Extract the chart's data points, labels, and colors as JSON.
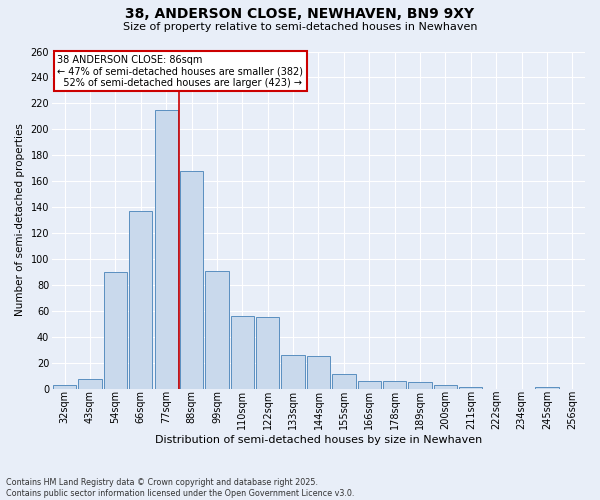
{
  "title": "38, ANDERSON CLOSE, NEWHAVEN, BN9 9XY",
  "subtitle": "Size of property relative to semi-detached houses in Newhaven",
  "xlabel": "Distribution of semi-detached houses by size in Newhaven",
  "ylabel": "Number of semi-detached properties",
  "categories": [
    "32sqm",
    "43sqm",
    "54sqm",
    "66sqm",
    "77sqm",
    "88sqm",
    "99sqm",
    "110sqm",
    "122sqm",
    "133sqm",
    "144sqm",
    "155sqm",
    "166sqm",
    "178sqm",
    "189sqm",
    "200sqm",
    "211sqm",
    "222sqm",
    "234sqm",
    "245sqm",
    "256sqm"
  ],
  "values": [
    3,
    7,
    90,
    137,
    215,
    168,
    91,
    56,
    55,
    26,
    25,
    11,
    6,
    6,
    5,
    3,
    1,
    0,
    0,
    1,
    0
  ],
  "bar_color": "#c9d9ec",
  "bar_edge_color": "#5a8fc0",
  "ref_line_color": "#cc0000",
  "annotation_box_color": "#ffffff",
  "annotation_box_edge": "#cc0000",
  "ref_line_label": "38 ANDERSON CLOSE: 86sqm",
  "smaller_pct": "47%",
  "smaller_count": 382,
  "larger_pct": "52%",
  "larger_count": 423,
  "background_color": "#e8eef8",
  "grid_color": "#ffffff",
  "footer": "Contains HM Land Registry data © Crown copyright and database right 2025.\nContains public sector information licensed under the Open Government Licence v3.0.",
  "ylim": [
    0,
    260
  ],
  "yticks": [
    0,
    20,
    40,
    60,
    80,
    100,
    120,
    140,
    160,
    180,
    200,
    220,
    240,
    260
  ],
  "title_fontsize": 10,
  "subtitle_fontsize": 8,
  "ylabel_fontsize": 7.5,
  "xlabel_fontsize": 8,
  "tick_fontsize": 7,
  "annotation_fontsize": 7
}
